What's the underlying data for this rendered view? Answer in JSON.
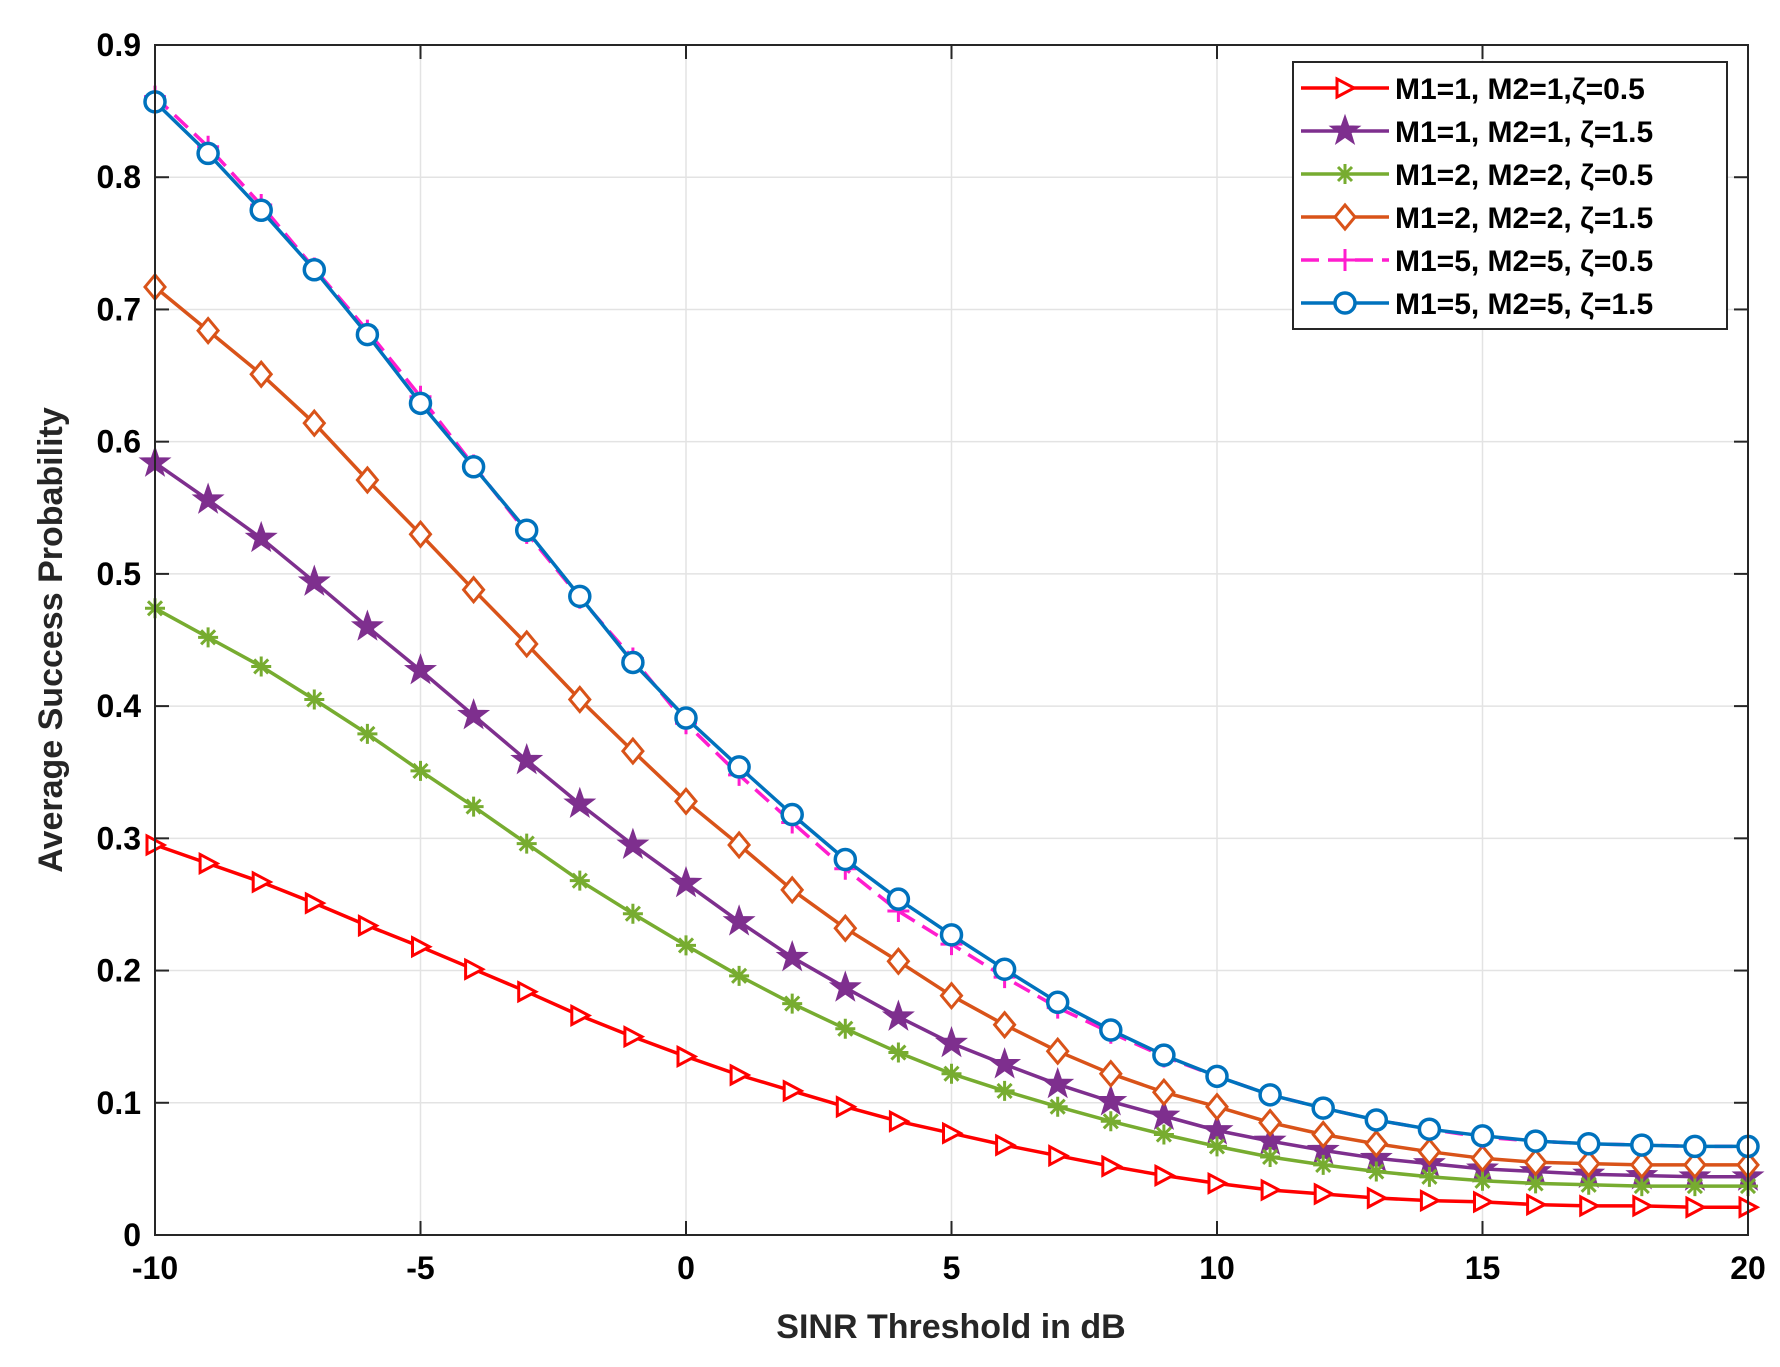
{
  "chart_data": {
    "type": "line",
    "title": "",
    "xlabel": "SINR Threshold in dB",
    "ylabel": "Average Success Probability",
    "xlim": [
      -10,
      20
    ],
    "ylim": [
      0,
      0.9
    ],
    "xticks": [
      -10,
      -5,
      0,
      5,
      10,
      15,
      20
    ],
    "yticks": [
      0,
      0.1,
      0.2,
      0.3,
      0.4,
      0.5,
      0.6,
      0.7,
      0.8,
      0.9
    ],
    "xtick_labels": [
      "-10",
      "-5",
      "0",
      "5",
      "10",
      "15",
      "20"
    ],
    "ytick_labels": [
      "0",
      "0.1",
      "0.2",
      "0.3",
      "0.4",
      "0.5",
      "0.6",
      "0.7",
      "0.8",
      "0.9"
    ],
    "grid": true,
    "legend_position": "top-right",
    "x": [
      -10,
      -9,
      -8,
      -7,
      -6,
      -5,
      -4,
      -3,
      -2,
      -1,
      0,
      1,
      2,
      3,
      4,
      5,
      6,
      7,
      8,
      9,
      10,
      11,
      12,
      13,
      14,
      15,
      16,
      17,
      18,
      19,
      20
    ],
    "series": [
      {
        "name": "M1=1, M2=1,ζ=0.5",
        "color": "#ff0000",
        "marker": "triangle-right",
        "dash": "solid",
        "values": [
          0.295,
          0.281,
          0.267,
          0.251,
          0.234,
          0.218,
          0.201,
          0.184,
          0.166,
          0.15,
          0.135,
          0.121,
          0.109,
          0.097,
          0.086,
          0.077,
          0.068,
          0.06,
          0.052,
          0.045,
          0.039,
          0.034,
          0.031,
          0.028,
          0.026,
          0.025,
          0.023,
          0.022,
          0.022,
          0.021,
          0.021
        ]
      },
      {
        "name": "M1=1, M2=1, ζ=1.5",
        "color": "#7e2f8e",
        "marker": "pentagram",
        "dash": "solid",
        "values": [
          0.584,
          0.556,
          0.527,
          0.494,
          0.46,
          0.427,
          0.393,
          0.359,
          0.326,
          0.295,
          0.266,
          0.237,
          0.21,
          0.187,
          0.165,
          0.145,
          0.129,
          0.114,
          0.101,
          0.09,
          0.079,
          0.071,
          0.064,
          0.058,
          0.054,
          0.05,
          0.048,
          0.046,
          0.045,
          0.044,
          0.044
        ]
      },
      {
        "name": "M1=2, M2=2, ζ=0.5",
        "color": "#77ac30",
        "marker": "asterisk",
        "dash": "solid",
        "values": [
          0.474,
          0.452,
          0.43,
          0.405,
          0.379,
          0.351,
          0.324,
          0.296,
          0.268,
          0.243,
          0.219,
          0.196,
          0.175,
          0.156,
          0.138,
          0.122,
          0.109,
          0.097,
          0.086,
          0.076,
          0.067,
          0.059,
          0.053,
          0.048,
          0.044,
          0.041,
          0.039,
          0.038,
          0.037,
          0.037,
          0.037
        ]
      },
      {
        "name": "M1=2, M2=2, ζ=1.5",
        "color": "#d95319",
        "marker": "diamond",
        "dash": "solid",
        "values": [
          0.717,
          0.684,
          0.651,
          0.614,
          0.571,
          0.53,
          0.488,
          0.447,
          0.405,
          0.366,
          0.328,
          0.295,
          0.261,
          0.232,
          0.207,
          0.181,
          0.159,
          0.139,
          0.122,
          0.108,
          0.097,
          0.085,
          0.076,
          0.069,
          0.063,
          0.058,
          0.055,
          0.054,
          0.053,
          0.053,
          0.053
        ]
      },
      {
        "name": "M1=5, M2=5, ζ=0.5",
        "color": "#ff1dce",
        "marker": "plus",
        "dash": "dashed",
        "values": [
          0.861,
          0.823,
          0.779,
          0.731,
          0.684,
          0.634,
          0.582,
          0.531,
          0.482,
          0.436,
          0.387,
          0.348,
          0.312,
          0.277,
          0.245,
          0.22,
          0.195,
          0.172,
          0.153,
          0.135,
          0.12,
          0.106,
          0.096,
          0.087,
          0.08,
          0.074,
          0.071,
          0.069,
          0.068,
          0.067,
          0.067
        ]
      },
      {
        "name": "M1=5, M2=5, ζ=1.5",
        "color": "#0072bd",
        "marker": "circle",
        "dash": "solid",
        "values": [
          0.857,
          0.818,
          0.775,
          0.73,
          0.681,
          0.629,
          0.581,
          0.533,
          0.483,
          0.433,
          0.391,
          0.354,
          0.318,
          0.284,
          0.254,
          0.227,
          0.201,
          0.176,
          0.155,
          0.136,
          0.12,
          0.106,
          0.096,
          0.087,
          0.08,
          0.075,
          0.071,
          0.069,
          0.068,
          0.067,
          0.067
        ]
      }
    ]
  }
}
